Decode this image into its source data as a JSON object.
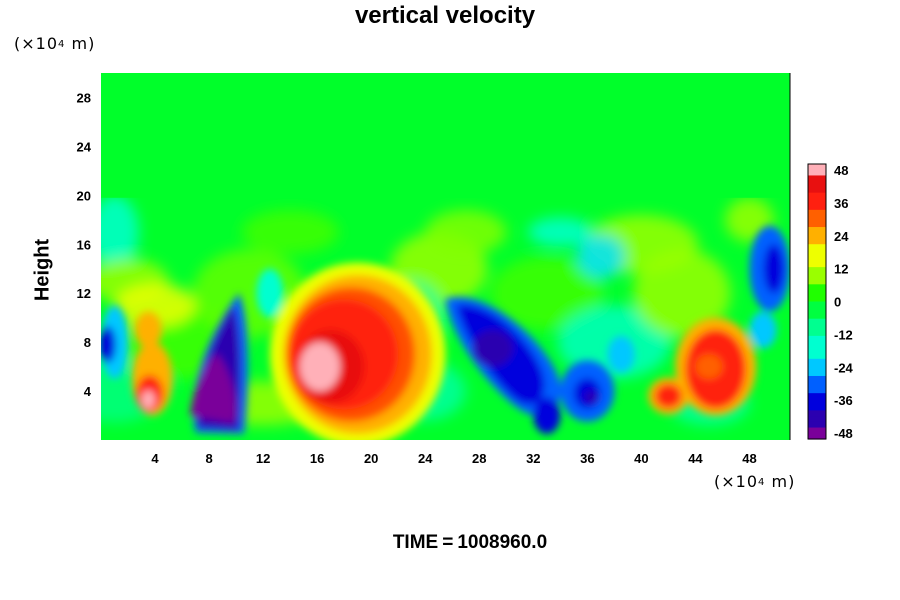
{
  "chart_data": {
    "type": "heatmap",
    "title": "vertical velocity",
    "ylabel": "Height",
    "x_unit_base": "(×10",
    "x_unit_exp": "4",
    "x_unit_tail": " m)",
    "y_unit_base": "(×10",
    "y_unit_exp": "4",
    "y_unit_tail": " m)",
    "xlim": [
      0,
      51
    ],
    "ylim": [
      0,
      30
    ],
    "x_ticks": [
      "4",
      "8",
      "12",
      "16",
      "20",
      "24",
      "28",
      "32",
      "36",
      "40",
      "44",
      "48"
    ],
    "y_ticks": [
      "4",
      "8",
      "12",
      "16",
      "20",
      "24",
      "28"
    ],
    "colorbar": {
      "ticks": [
        "48",
        "36",
        "24",
        "12",
        "0",
        "-12",
        "-24",
        "-36",
        "-48"
      ],
      "min": -48,
      "max": 48,
      "colors": [
        "#7a009a",
        "#2b00b0",
        "#0000dd",
        "#0060ff",
        "#00c8ff",
        "#00ffd0",
        "#00ff90",
        "#00ff40",
        "#20ff00",
        "#9aff00",
        "#eeff00",
        "#ffb000",
        "#ff6000",
        "#ff2010",
        "#e81010",
        "#ffb0b8"
      ]
    },
    "features": [
      {
        "x": 3.5,
        "y": 4.0,
        "value": 40
      },
      {
        "x": 9.0,
        "y": 4.5,
        "value": -48
      },
      {
        "x": 16.5,
        "y": 6.0,
        "value": 48
      },
      {
        "x": 19.5,
        "y": 7.5,
        "value": 40
      },
      {
        "x": 29.0,
        "y": 7.5,
        "value": -42
      },
      {
        "x": 36.0,
        "y": 4.0,
        "value": -36
      },
      {
        "x": 42.0,
        "y": 3.5,
        "value": 36
      },
      {
        "x": 45.5,
        "y": 6.0,
        "value": 40
      },
      {
        "x": 49.5,
        "y": 14.0,
        "value": -30
      },
      {
        "x": 2.0,
        "y": 8.0,
        "value": -28
      }
    ]
  },
  "time_label": "TIME",
  "time_equals": "=",
  "time_value": "1008960.0"
}
